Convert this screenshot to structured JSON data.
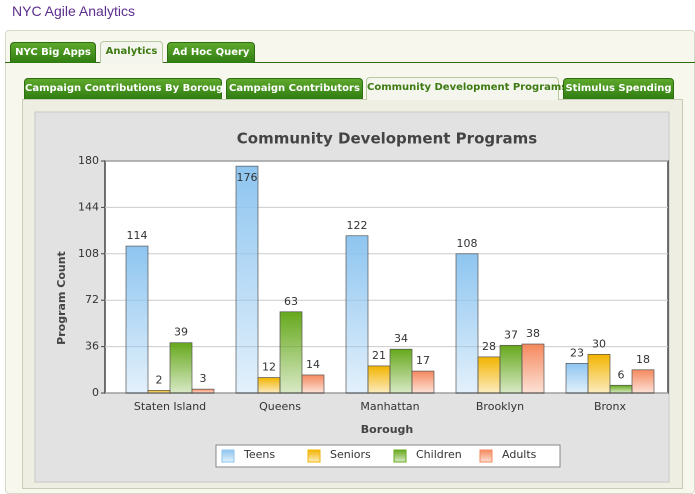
{
  "header": {
    "title": "NYC Agile Analytics"
  },
  "main_tabs": [
    "NYC Big Apps",
    "Analytics",
    "Ad Hoc Query"
  ],
  "sub_tabs": [
    "Campaign Contributions By Borough",
    "Campaign Contributors",
    "Community Development Programs",
    "Stimulus Spending"
  ],
  "chart_data": {
    "type": "bar",
    "title": "Community Development Programs",
    "x_label": "Borough",
    "y_label": "Program Count",
    "categories": [
      "Staten Island",
      "Queens",
      "Manhattan",
      "Brooklyn",
      "Bronx"
    ],
    "series": [
      {
        "name": "Teens",
        "color": "#8ec5f0",
        "values": [
          114,
          176,
          122,
          108,
          23
        ]
      },
      {
        "name": "Seniors",
        "color": "#f2b400",
        "values": [
          2,
          12,
          21,
          28,
          30
        ]
      },
      {
        "name": "Children",
        "color": "#66a81c",
        "values": [
          39,
          63,
          34,
          37,
          6
        ]
      },
      {
        "name": "Adults",
        "color": "#f4895e",
        "values": [
          3,
          14,
          17,
          38,
          18
        ]
      }
    ],
    "ylim": [
      0,
      180
    ],
    "yticks": [
      0,
      36,
      72,
      108,
      144,
      180
    ],
    "grid": true,
    "legend": "bottom"
  }
}
